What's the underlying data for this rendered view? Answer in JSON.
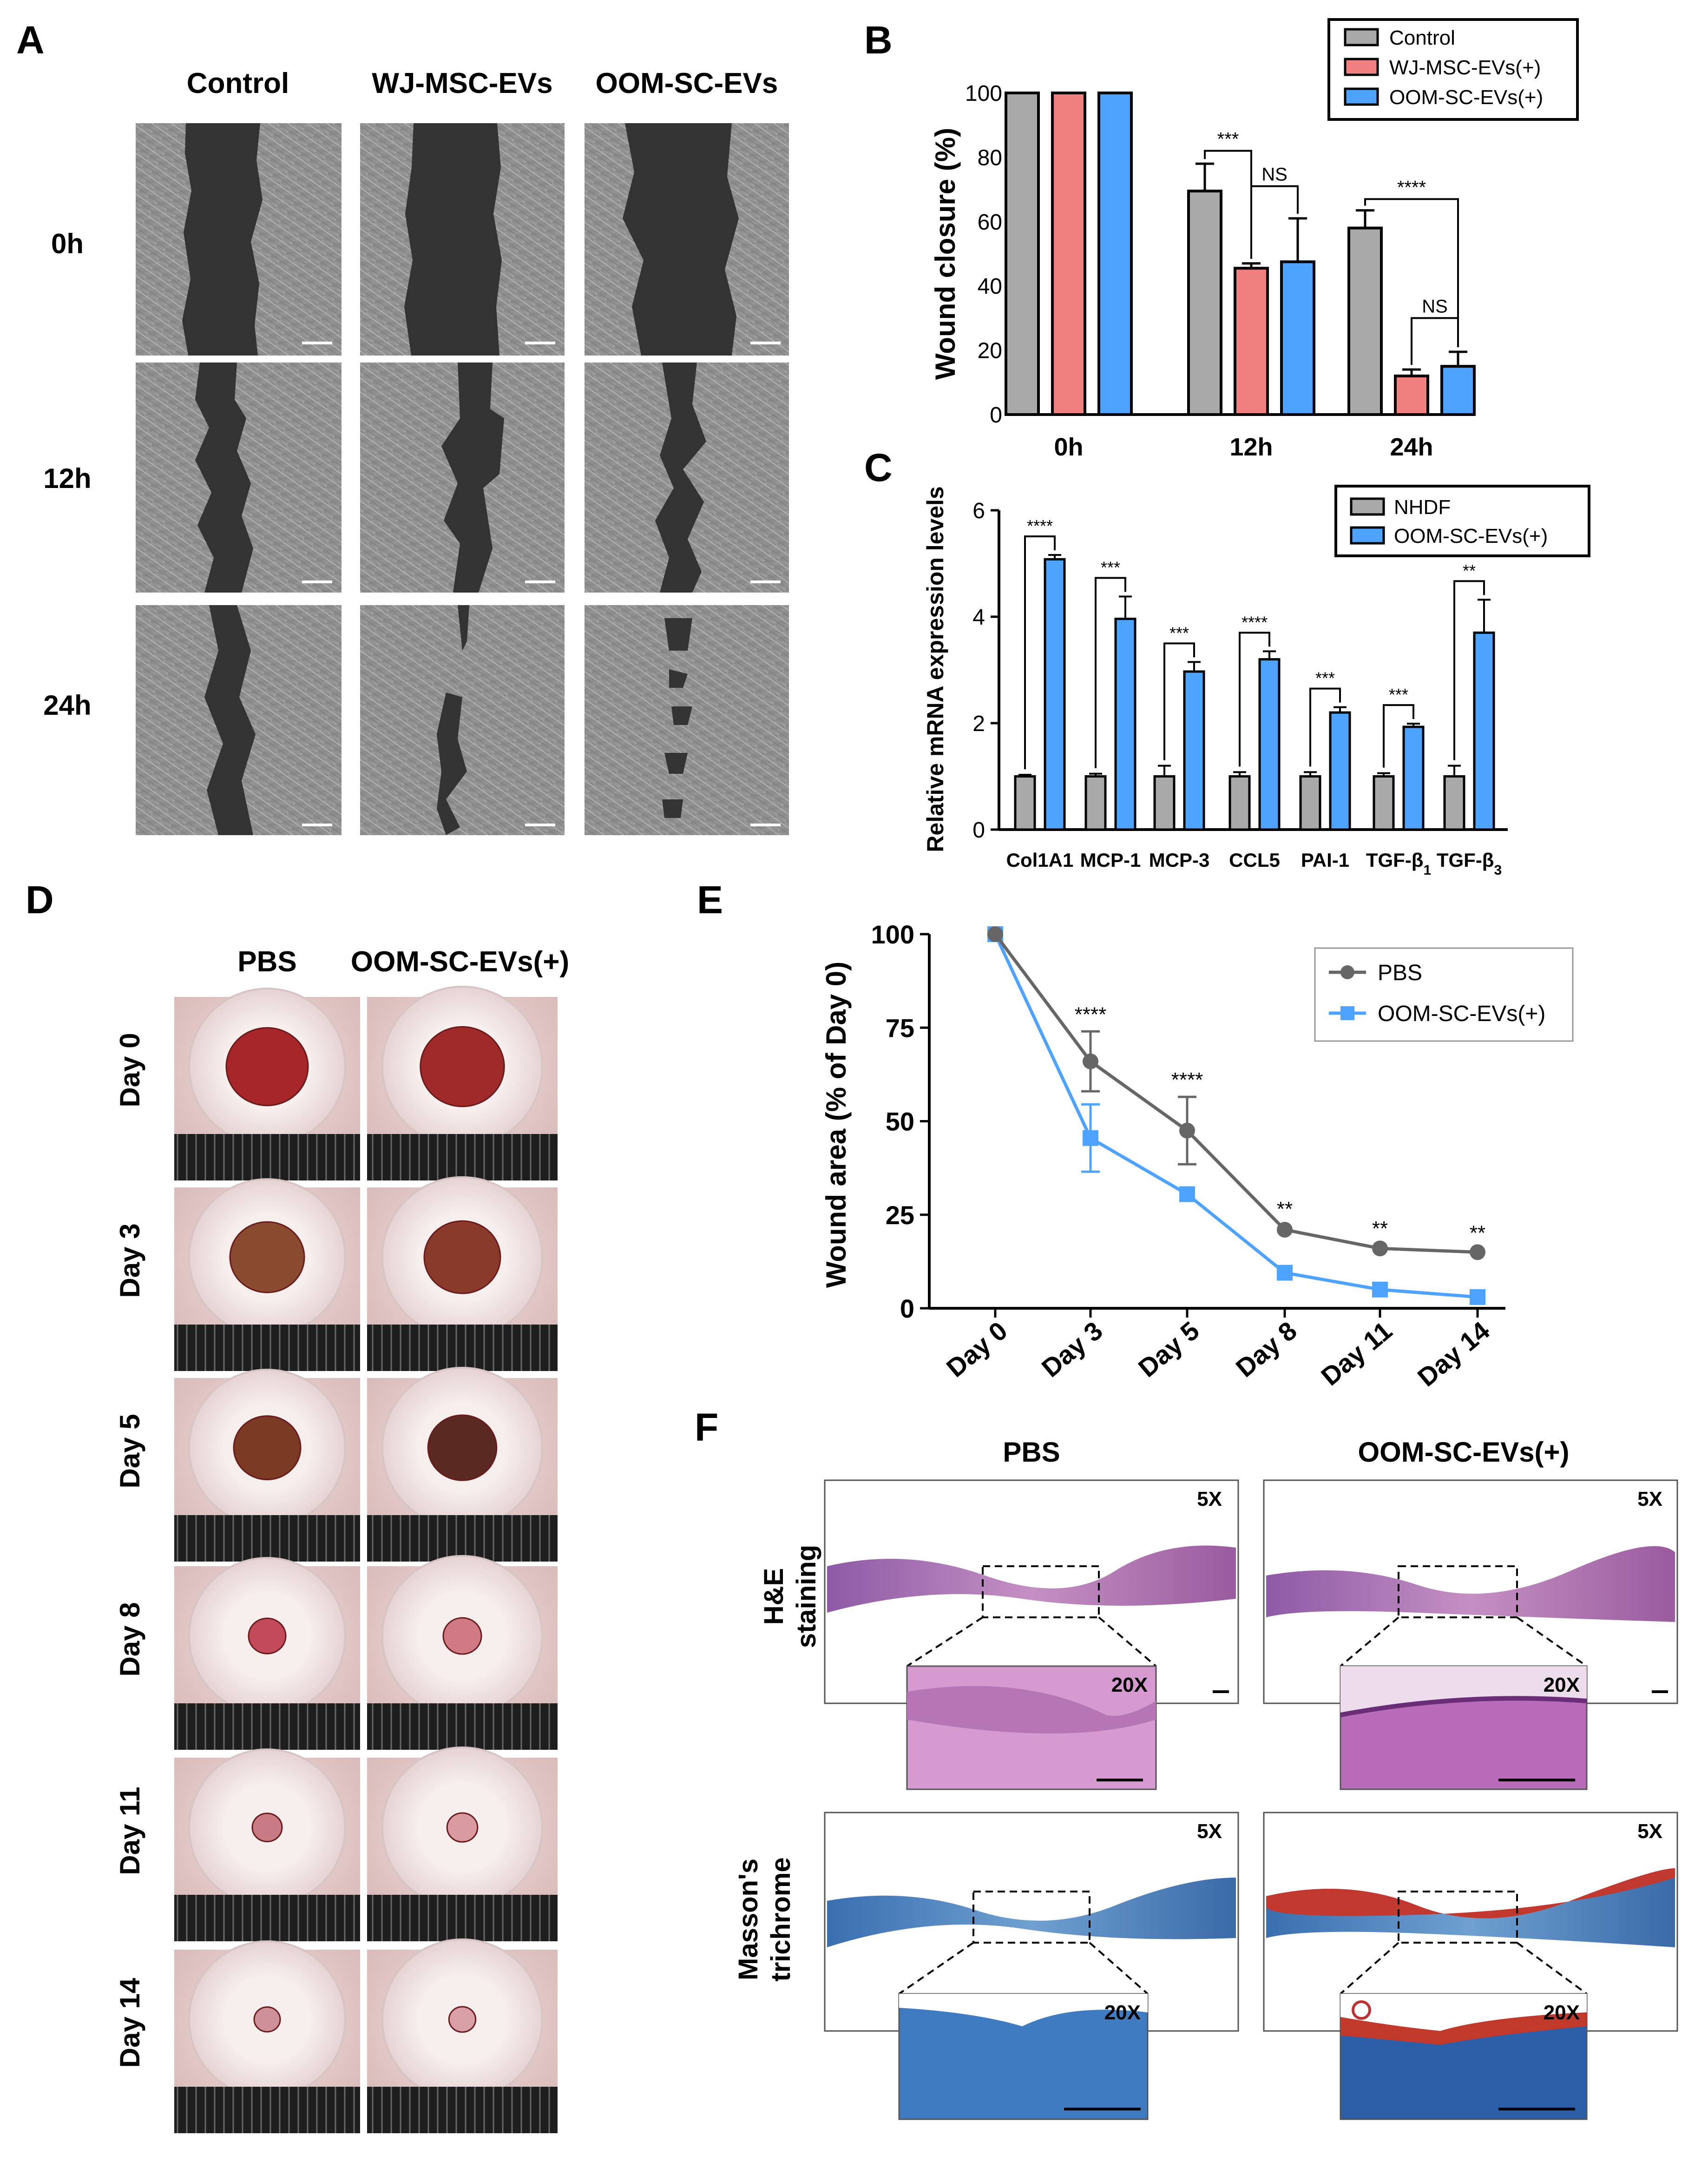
{
  "panels": {
    "A": {
      "letter": "A",
      "columns": [
        "Control",
        "WJ-MSC-EVs",
        "OOM-SC-EVs"
      ],
      "rows": [
        "0h",
        "12h",
        "24h"
      ]
    },
    "D": {
      "letter": "D",
      "columns": [
        "PBS",
        "OOM-SC-EVs(+)"
      ],
      "rows": [
        "Day 0",
        "Day 3",
        "Day 5",
        "Day 8",
        "Day 11",
        "Day 14"
      ]
    },
    "F": {
      "letter": "F",
      "columns": [
        "PBS",
        "OOM-SC-EVs(+)"
      ],
      "rows": [
        [
          "H&E",
          "staining"
        ],
        [
          "Masson's",
          "trichrome"
        ]
      ],
      "mag_low": "5X",
      "mag_high": "20X"
    }
  },
  "chart_data": [
    {
      "id": "B",
      "letter": "B",
      "type": "bar",
      "categories": [
        "0h",
        "12h",
        "24h"
      ],
      "series": [
        {
          "name": "Control",
          "values": [
            100,
            69.5,
            58
          ],
          "errors": [
            0,
            8.5,
            5.5
          ],
          "color": "#a9a9a9"
        },
        {
          "name": "WJ-MSC-EVs(+)",
          "values": [
            100,
            45.5,
            12
          ],
          "errors": [
            0,
            1.5,
            2
          ],
          "color": "#f08080"
        },
        {
          "name": "OOM-SC-EVs(+)",
          "values": [
            100,
            47.5,
            15
          ],
          "errors": [
            0,
            13.5,
            4.5
          ],
          "color": "#4da3ff"
        }
      ],
      "ylabel": "Wound closure (%)",
      "ylim": [
        0,
        100
      ],
      "yticks": [
        0,
        20,
        40,
        60,
        80,
        100
      ],
      "legend": "top-right",
      "annotations": [
        {
          "category": "12h",
          "from": 0,
          "to": 1,
          "text": "***"
        },
        {
          "category": "12h",
          "from": 1,
          "to": 2,
          "text": "NS"
        },
        {
          "category": "24h",
          "from": 0,
          "to": 2,
          "text": "****"
        },
        {
          "category": "24h",
          "from": 1,
          "to": 2,
          "text": "NS"
        }
      ]
    },
    {
      "id": "C",
      "letter": "C",
      "type": "bar",
      "categories": [
        "Col1A1",
        "MCP-1",
        "MCP-3",
        "CCL5",
        "PAI-1",
        "TGF-β1",
        "TGF-β3"
      ],
      "series": [
        {
          "name": "NHDF",
          "values": [
            1,
            1,
            1,
            1,
            1,
            1,
            1
          ],
          "errors": [
            0.03,
            0.05,
            0.2,
            0.08,
            0.08,
            0.06,
            0.2
          ],
          "color": "#a9a9a9"
        },
        {
          "name": "OOM-SC-EVs(+)",
          "values": [
            5.08,
            3.96,
            2.97,
            3.2,
            2.2,
            1.93,
            3.7
          ],
          "errors": [
            0.08,
            0.42,
            0.18,
            0.15,
            0.1,
            0.06,
            0.62
          ],
          "color": "#4da3ff"
        }
      ],
      "significance": [
        "****",
        "***",
        "***",
        "****",
        "***",
        "***",
        "**"
      ],
      "ylabel": "Relative mRNA expression levels",
      "ylim": [
        0,
        6
      ],
      "yticks": [
        0,
        2,
        4,
        6
      ],
      "legend": "top-right"
    },
    {
      "id": "E",
      "letter": "E",
      "type": "line",
      "x": [
        "Day 0",
        "Day 3",
        "Day 5",
        "Day 8",
        "Day 11",
        "Day 14"
      ],
      "series": [
        {
          "name": "PBS",
          "values": [
            100,
            66,
            47.5,
            21,
            16,
            15
          ],
          "errors": [
            0,
            8,
            9,
            1,
            0.8,
            0.6
          ],
          "color": "#666666",
          "marker": "circle"
        },
        {
          "name": "OOM-SC-EVs(+)",
          "values": [
            100,
            45.5,
            30.5,
            9.5,
            5,
            3
          ],
          "errors": [
            0,
            9,
            1,
            0.5,
            0.5,
            0.5
          ],
          "color": "#4da3ff",
          "marker": "square"
        }
      ],
      "significance": [
        "",
        "****",
        "****",
        "**",
        "**",
        "**"
      ],
      "ylabel": "Wound area (% of Day 0)",
      "ylim": [
        0,
        100
      ],
      "yticks": [
        0,
        25,
        50,
        75,
        100
      ],
      "legend": "top-right"
    }
  ]
}
